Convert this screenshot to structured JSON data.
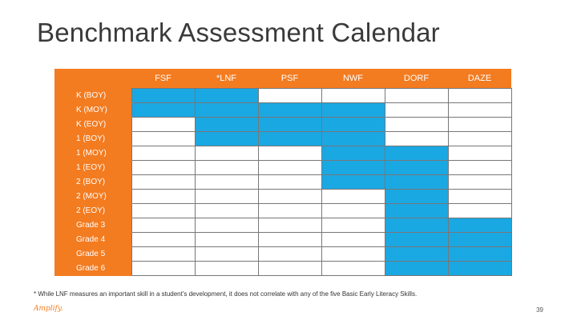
{
  "title": "Benchmark Assessment Calendar",
  "columns": [
    "FSF",
    "*LNF",
    "PSF",
    "NWF",
    "DORF",
    "DAZE"
  ],
  "rows": [
    {
      "label": "K (BOY)",
      "cells": [
        true,
        true,
        false,
        false,
        false,
        false
      ]
    },
    {
      "label": "K (MOY)",
      "cells": [
        true,
        true,
        true,
        true,
        false,
        false
      ]
    },
    {
      "label": "K (EOY)",
      "cells": [
        false,
        true,
        true,
        true,
        false,
        false
      ]
    },
    {
      "label": "1 (BOY)",
      "cells": [
        false,
        true,
        true,
        true,
        false,
        false
      ]
    },
    {
      "label": "1 (MOY)",
      "cells": [
        false,
        false,
        false,
        true,
        true,
        false
      ]
    },
    {
      "label": "1 (EOY)",
      "cells": [
        false,
        false,
        false,
        true,
        true,
        false
      ]
    },
    {
      "label": "2 (BOY)",
      "cells": [
        false,
        false,
        false,
        true,
        true,
        false
      ]
    },
    {
      "label": "2 (MOY)",
      "cells": [
        false,
        false,
        false,
        false,
        true,
        false
      ]
    },
    {
      "label": "2 (EOY)",
      "cells": [
        false,
        false,
        false,
        false,
        true,
        false
      ]
    },
    {
      "label": "Grade 3",
      "cells": [
        false,
        false,
        false,
        false,
        true,
        true
      ]
    },
    {
      "label": "Grade 4",
      "cells": [
        false,
        false,
        false,
        false,
        true,
        true
      ]
    },
    {
      "label": "Grade 5",
      "cells": [
        false,
        false,
        false,
        false,
        true,
        true
      ]
    },
    {
      "label": "Grade 6",
      "cells": [
        false,
        false,
        false,
        false,
        true,
        true
      ]
    }
  ],
  "footnote": "* While LNF measures an important skill in a student's development, it does not correlate with any of the five Basic Early Literacy Skills.",
  "logo": "Amplify.",
  "page_number": "39",
  "colors": {
    "header_orange": "#f37b20",
    "active_blue": "#1aa8e3",
    "grid": "#777777"
  }
}
